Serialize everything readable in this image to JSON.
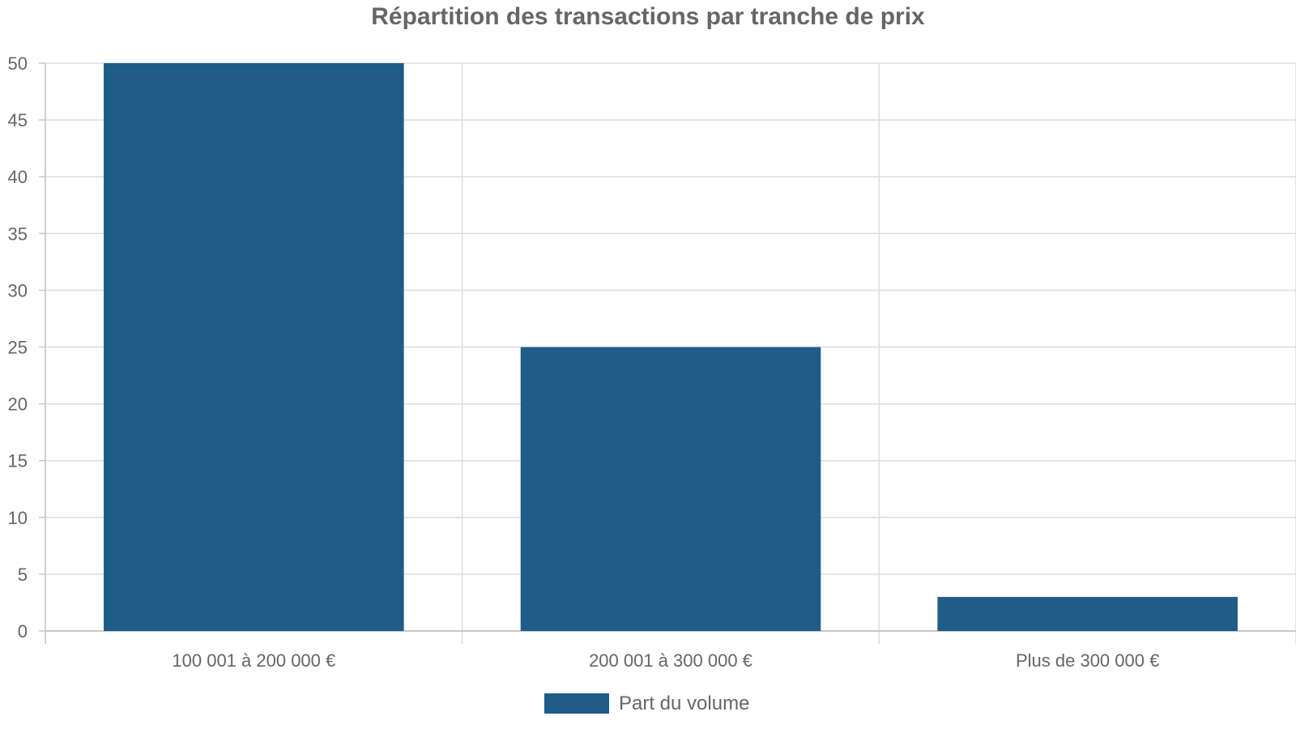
{
  "chart_data": {
    "type": "bar",
    "title": "Répartition des transactions par tranche de prix",
    "xlabel": "",
    "ylabel": "",
    "categories": [
      "100 001 à 200 000 €",
      "200 001 à 300 000 €",
      "Plus de 300 000 €"
    ],
    "series": [
      {
        "name": "Part du volume",
        "values": [
          50,
          25,
          3
        ],
        "color": "#1f5c87"
      }
    ],
    "ylim": [
      0,
      50
    ],
    "yticks": [
      0,
      5,
      10,
      15,
      20,
      25,
      30,
      35,
      40,
      45,
      50
    ],
    "grid": true,
    "legend_position": "bottom-center"
  }
}
